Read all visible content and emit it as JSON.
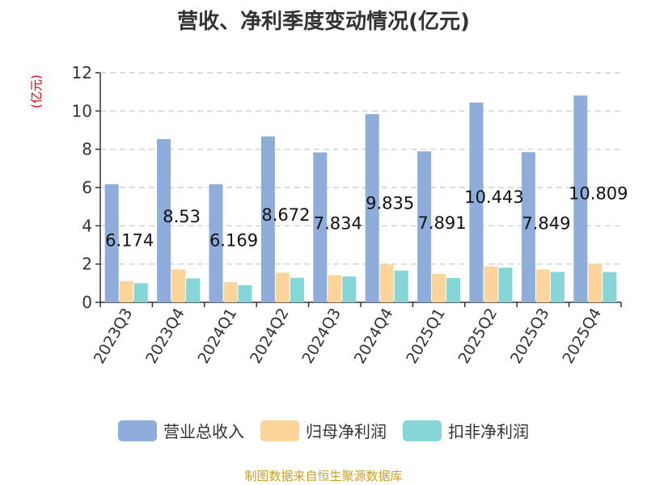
{
  "chart_data": {
    "type": "bar",
    "title": "营收、净利季度变动情况(亿元)",
    "ylabel": "(亿元)",
    "ylim": [
      0,
      12
    ],
    "yticks": [
      0,
      2,
      4,
      6,
      8,
      10,
      12
    ],
    "grid": true,
    "legend_position": "bottom",
    "categories": [
      "2023Q3",
      "2023Q4",
      "2024Q1",
      "2024Q2",
      "2024Q3",
      "2024Q4",
      "2025Q1",
      "2025Q2",
      "2025Q3",
      "2025Q4"
    ],
    "series": [
      {
        "name": "营业总收入",
        "color": "#8eadda",
        "values": [
          6.174,
          8.53,
          6.169,
          8.672,
          7.834,
          9.835,
          7.891,
          10.443,
          7.849,
          10.809
        ],
        "labels": [
          "6.174",
          "8.53",
          "6.169",
          "8.672",
          "7.834",
          "9.835",
          "7.891",
          "10.443",
          "7.849",
          "10.809"
        ]
      },
      {
        "name": "归母净利润",
        "color": "#fdd59a",
        "values": [
          1.1,
          1.72,
          1.05,
          1.55,
          1.42,
          1.98,
          1.48,
          1.88,
          1.72,
          2.0
        ]
      },
      {
        "name": "扣非净利润",
        "color": "#86d6d8",
        "values": [
          1.0,
          1.25,
          0.9,
          1.28,
          1.35,
          1.66,
          1.27,
          1.81,
          1.59,
          1.58
        ]
      }
    ]
  },
  "source": "制图数据来自恒生聚源数据库"
}
